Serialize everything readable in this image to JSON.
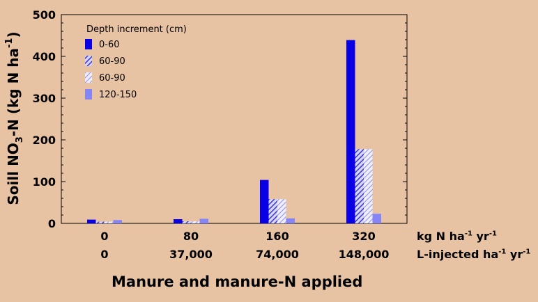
{
  "chart_data": {
    "type": "bar",
    "title": "",
    "ylabel_parts": {
      "pre": "Soill NO",
      "sub": "3",
      "mid": "-N (kg N ha",
      "sup": "-1",
      "post": ")"
    },
    "xlabel": "Manure and manure-N applied",
    "ylim": [
      0,
      500
    ],
    "yticks": [
      0,
      100,
      200,
      300,
      400,
      500
    ],
    "category_rows": [
      {
        "labels": [
          "0",
          "80",
          "160",
          "320"
        ],
        "unit_parts": {
          "pre": "kg N ha",
          "sup1": "-1",
          "mid": " yr",
          "sup2": "-1"
        }
      },
      {
        "labels": [
          "0",
          "37,000",
          "74,000",
          "148,000"
        ],
        "unit_parts": {
          "pre": "L-injected ha",
          "sup1": "-1",
          "mid": " yr",
          "sup2": "-1"
        }
      }
    ],
    "legend": {
      "title": "Depth increment (cm)",
      "position": "top-left"
    },
    "series": [
      {
        "name": "0-60",
        "color": "#0a00e6",
        "pattern": "solid",
        "values": [
          9,
          10,
          104,
          439
        ]
      },
      {
        "name": "60-90",
        "color": "#3b36d6",
        "pattern": "hatch-dense",
        "values": [
          4,
          5,
          58,
          178
        ]
      },
      {
        "name": "60-90",
        "color": "#8f8cf2",
        "pattern": "hatch-light",
        "values": [
          4,
          5,
          58,
          178
        ]
      },
      {
        "name": "120-150",
        "color": "#8585f5",
        "pattern": "solid",
        "values": [
          8,
          11,
          12,
          23
        ]
      }
    ]
  }
}
